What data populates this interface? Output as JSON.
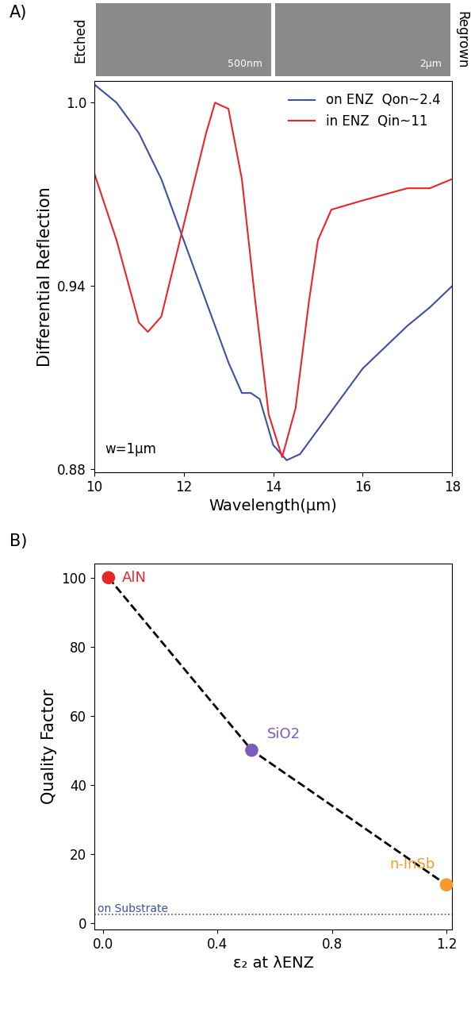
{
  "images": [
    {
      "label": "Etched",
      "scale_bar": "500nm"
    },
    {
      "label": "Regrown",
      "scale_bar": "2μm"
    }
  ],
  "chart_data": [
    {
      "type": "line",
      "panel": "A)",
      "x_label": "Wavelength(μm)",
      "y_label": "Differential Reflection",
      "xlim": [
        10,
        18
      ],
      "xticks": [
        10,
        12,
        14,
        16,
        18
      ],
      "ylim": [
        0.879,
        1.007
      ],
      "yticks": [
        0.88,
        0.94,
        1.0
      ],
      "legend": "upper right",
      "annotations": [
        "w=1μm"
      ],
      "series": [
        {
          "name": "on ENZ  Qon~2.4",
          "color": "#3f4fa3",
          "x": [
            10,
            10.5,
            11,
            11.5,
            12,
            12.5,
            13,
            13.3,
            13.5,
            13.7,
            14,
            14.3,
            14.6,
            15,
            15.5,
            16,
            16.5,
            17,
            17.5,
            18
          ],
          "values": [
            1.006,
            1.0,
            0.99,
            0.975,
            0.955,
            0.935,
            0.915,
            0.905,
            0.905,
            0.903,
            0.888,
            0.883,
            0.885,
            0.893,
            0.903,
            0.913,
            0.92,
            0.927,
            0.933,
            0.94
          ]
        },
        {
          "name": "in ENZ  Qin~11",
          "color": "#e8262a",
          "x": [
            10,
            10.5,
            11,
            11.2,
            11.5,
            12,
            12.5,
            12.7,
            13,
            13.3,
            13.6,
            13.9,
            14.2,
            14.5,
            14.8,
            15,
            15.3,
            16,
            16.5,
            17,
            17.5,
            18
          ],
          "values": [
            0.977,
            0.955,
            0.928,
            0.925,
            0.93,
            0.96,
            0.99,
            1.0,
            0.998,
            0.975,
            0.935,
            0.898,
            0.884,
            0.9,
            0.935,
            0.955,
            0.965,
            0.968,
            0.97,
            0.972,
            0.972,
            0.975
          ]
        }
      ]
    },
    {
      "type": "scatter",
      "panel": "B)",
      "x_label": "ε₂ at λENZ",
      "y_label": "Quality Factor",
      "xlim": [
        -0.03,
        1.22
      ],
      "xticks": [
        0.0,
        0.4,
        0.8,
        1.2
      ],
      "ylim": [
        -2,
        104
      ],
      "yticks": [
        0,
        20,
        40,
        60,
        80,
        100
      ],
      "line_style": "dashed",
      "categories": [
        "AlN",
        "SiO2",
        "n-InSb"
      ],
      "x": [
        0.02,
        0.52,
        1.2
      ],
      "values": [
        100,
        50,
        11
      ],
      "colors": [
        "#e8262a",
        "#7b5cb8",
        "#f39a2b"
      ],
      "reference": {
        "label": "on Substrate",
        "value": 2.4,
        "color": "#3f4fa3",
        "line_style": "dotted"
      }
    }
  ]
}
